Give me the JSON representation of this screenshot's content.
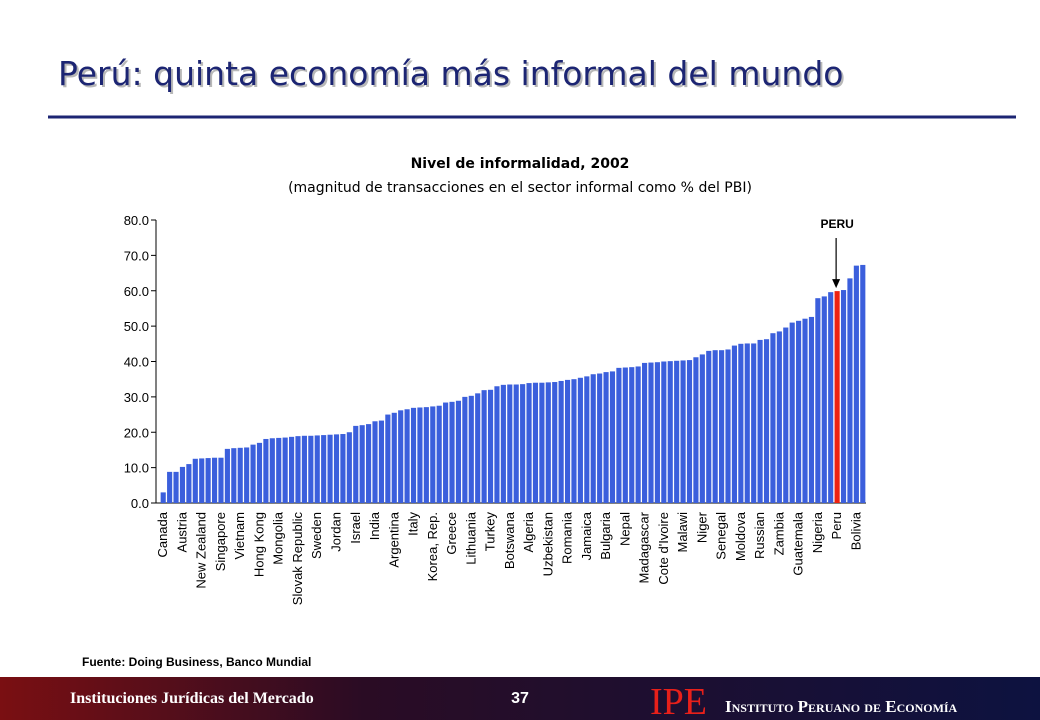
{
  "slide": {
    "title": "Perú: quinta economía más informal del mundo",
    "source": "Fuente: Doing Business, Banco Mundial",
    "footer": "Instituciones Jurídicas del Mercado",
    "page": "37",
    "logo": "IPE",
    "institute": "Instituto Peruano de Economía"
  },
  "chart_data": {
    "type": "bar",
    "title": "Nivel de informalidad, 2002",
    "subtitle": "(magnitud de transacciones en el sector informal como % del PBI)",
    "categories": [
      "Canada",
      null,
      null,
      "Austria",
      null,
      null,
      "New Zealand",
      null,
      null,
      "Singapore",
      null,
      null,
      "Vietnam",
      null,
      null,
      "Hong Kong",
      null,
      null,
      "Mongolia",
      null,
      null,
      "Slovak Republic",
      null,
      null,
      "Sweden",
      null,
      null,
      "Jordan",
      null,
      null,
      "Israel",
      null,
      null,
      "India",
      null,
      null,
      "Argentina",
      null,
      null,
      "Italy",
      null,
      null,
      "Korea, Rep.",
      null,
      null,
      "Greece",
      null,
      null,
      "Lithuania",
      null,
      null,
      "Turkey",
      null,
      null,
      "Botswana",
      null,
      null,
      "Algeria",
      null,
      null,
      "Uzbekistan",
      null,
      null,
      "Romania",
      null,
      null,
      "Jamaica",
      null,
      null,
      "Bulgaria",
      null,
      null,
      "Nepal",
      null,
      null,
      "Madagascar",
      null,
      null,
      "Cote d'Ivoire",
      null,
      null,
      "Malawi",
      null,
      null,
      "Niger",
      null,
      null,
      "Senegal",
      null,
      null,
      "Moldova",
      null,
      null,
      "Russian",
      null,
      null,
      "Zambia",
      null,
      null,
      "Guatemala",
      null,
      null,
      "Nigeria",
      null,
      null,
      "Peru",
      null,
      null,
      "Bolivia",
      null
    ],
    "values": [
      3,
      8.8,
      8.8,
      10.2,
      11,
      12.5,
      12.6,
      12.7,
      12.8,
      12.8,
      15.3,
      15.5,
      15.6,
      15.7,
      16.5,
      17,
      18.1,
      18.3,
      18.4,
      18.5,
      18.7,
      18.9,
      19,
      19,
      19.1,
      19.2,
      19.3,
      19.4,
      19.5,
      20,
      21.8,
      22,
      22.3,
      23.1,
      23.3,
      25,
      25.5,
      26.2,
      26.5,
      26.9,
      27,
      27.1,
      27.3,
      27.5,
      28.4,
      28.6,
      28.9,
      30,
      30.3,
      31,
      31.9,
      32,
      33,
      33.4,
      33.5,
      33.5,
      33.6,
      33.9,
      34,
      34,
      34.1,
      34.2,
      34.5,
      34.8,
      35,
      35.4,
      35.8,
      36.4,
      36.6,
      37,
      37.2,
      38.2,
      38.3,
      38.4,
      38.6,
      39.6,
      39.7,
      39.8,
      40,
      40.1,
      40.2,
      40.3,
      40.4,
      41.2,
      42,
      43,
      43.2,
      43.2,
      43.4,
      44.5,
      45,
      45.1,
      45.1,
      46.1,
      46.3,
      48,
      48.5,
      49.6,
      51,
      51.5,
      52.1,
      52.6,
      57.9,
      58.4,
      59.6,
      59.9,
      60.2,
      63.5,
      67.1,
      67.3
    ],
    "color": "#3b5fdc",
    "annotation": {
      "text": "PERU",
      "target": "Peru",
      "color": "#ee2211"
    },
    "ylim": [
      0,
      80
    ],
    "yticks": [
      {
        "value": 0,
        "label": "0.0"
      },
      {
        "value": 10,
        "label": "10.0"
      },
      {
        "value": 20,
        "label": "20.0"
      },
      {
        "value": 30,
        "label": "30.0"
      },
      {
        "value": 40,
        "label": "40.0"
      },
      {
        "value": 50,
        "label": "50.0"
      },
      {
        "value": 60,
        "label": "60.0"
      },
      {
        "value": 70,
        "label": "70.0"
      },
      {
        "value": 80,
        "label": "80.0"
      }
    ],
    "grid": false
  }
}
